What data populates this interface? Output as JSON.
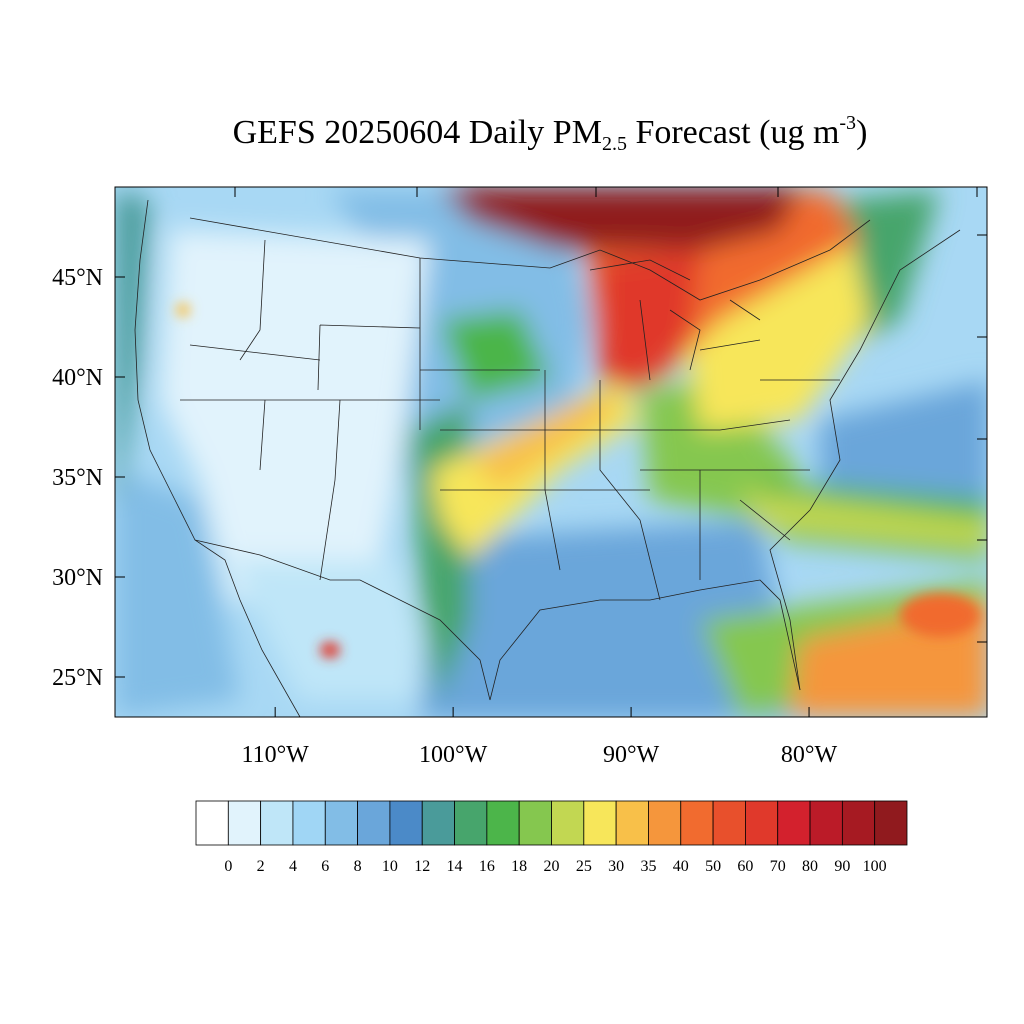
{
  "title": {
    "prefix": "GEFS 20250604 Daily PM",
    "subscript": "2.5",
    "suffix": " Forecast (ug m",
    "superscript": "-3",
    "close": ")"
  },
  "map": {
    "projection": "cylindrical-equidistant",
    "lon_range": [
      -119,
      -70
    ],
    "lat_range": [
      23,
      49.5
    ],
    "background_color": "#a8d8f4",
    "latitude_ticks": [
      {
        "value": 45,
        "label": "45°N"
      },
      {
        "value": 40,
        "label": "40°N"
      },
      {
        "value": 35,
        "label": "35°N"
      },
      {
        "value": 30,
        "label": "30°N"
      },
      {
        "value": 25,
        "label": "25°N"
      }
    ],
    "longitude_ticks": [
      {
        "value": -110,
        "label": "110°W"
      },
      {
        "value": -100,
        "label": "100°W"
      },
      {
        "value": -90,
        "label": "90°W"
      },
      {
        "value": -80,
        "label": "80°W"
      }
    ],
    "features": [
      {
        "name": "canadian-wildfire-smoke-plume",
        "level": ">100"
      },
      {
        "name": "great-lakes-smoke-band",
        "level": "50-70"
      },
      {
        "name": "northeast-smoke-band",
        "level": "25-40"
      },
      {
        "name": "southern-plains-smoke-band",
        "level": "25-40"
      },
      {
        "name": "caribbean-saharan-dust",
        "level": "30-50"
      },
      {
        "name": "intermountain-west-clean-air",
        "level": "0-4"
      }
    ]
  },
  "colorbar": {
    "colors": [
      "#ffffff",
      "#e1f3fc",
      "#bfe6f8",
      "#a0d6f5",
      "#82bde6",
      "#6aa6da",
      "#4b8ac8",
      "#4a9b9a",
      "#47a56c",
      "#4cb54a",
      "#85c74f",
      "#c2d752",
      "#f7e65a",
      "#f8c049",
      "#f5963c",
      "#f16b2f",
      "#e8502c",
      "#e0392b",
      "#d3212d",
      "#bb1b28",
      "#a61a22",
      "#901a1e"
    ],
    "labels": [
      "0",
      "2",
      "4",
      "6",
      "8",
      "10",
      "12",
      "14",
      "16",
      "18",
      "20",
      "25",
      "30",
      "35",
      "40",
      "50",
      "60",
      "70",
      "80",
      "90",
      "100"
    ]
  }
}
